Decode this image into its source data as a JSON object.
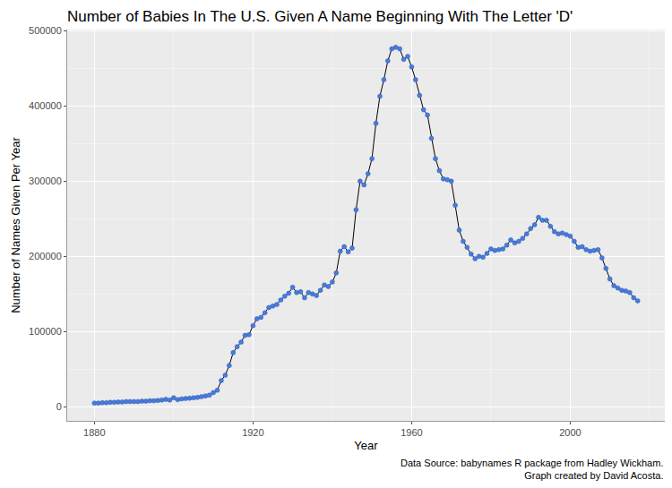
{
  "chart_data": {
    "type": "line",
    "title": "Number of Babies In The U.S. Given A Name Beginning With The Letter 'D'",
    "x_label": "Year",
    "y_label": "Number of Names Given Per Year",
    "caption": [
      "Data Source: babynames R package from Hadley Wickham.",
      "Graph created by David Acosta."
    ],
    "x": [
      1880,
      1881,
      1882,
      1883,
      1884,
      1885,
      1886,
      1887,
      1888,
      1889,
      1890,
      1891,
      1892,
      1893,
      1894,
      1895,
      1896,
      1897,
      1898,
      1899,
      1900,
      1901,
      1902,
      1903,
      1904,
      1905,
      1906,
      1907,
      1908,
      1909,
      1910,
      1911,
      1912,
      1913,
      1914,
      1915,
      1916,
      1917,
      1918,
      1919,
      1920,
      1921,
      1922,
      1923,
      1924,
      1925,
      1926,
      1927,
      1928,
      1929,
      1930,
      1931,
      1932,
      1933,
      1934,
      1935,
      1936,
      1937,
      1938,
      1939,
      1940,
      1941,
      1942,
      1943,
      1944,
      1945,
      1946,
      1947,
      1948,
      1949,
      1950,
      1951,
      1952,
      1953,
      1954,
      1955,
      1956,
      1957,
      1958,
      1959,
      1960,
      1961,
      1962,
      1963,
      1964,
      1965,
      1966,
      1967,
      1968,
      1969,
      1970,
      1971,
      1972,
      1973,
      1974,
      1975,
      1976,
      1977,
      1978,
      1979,
      1980,
      1981,
      1982,
      1983,
      1984,
      1985,
      1986,
      1987,
      1988,
      1989,
      1990,
      1991,
      1992,
      1993,
      1994,
      1995,
      1996,
      1997,
      1998,
      1999,
      2000,
      2001,
      2002,
      2003,
      2004,
      2005,
      2006,
      2007,
      2008,
      2009,
      2010,
      2011,
      2012,
      2013,
      2014,
      2015,
      2016,
      2017
    ],
    "values": [
      5000,
      5000,
      5500,
      5500,
      6000,
      6000,
      6500,
      6500,
      7000,
      7000,
      7000,
      7000,
      7500,
      7500,
      8000,
      8000,
      8500,
      9000,
      10000,
      9000,
      12000,
      9500,
      10500,
      11000,
      11500,
      12000,
      12500,
      13500,
      14500,
      15500,
      19000,
      22000,
      35000,
      42000,
      55000,
      72000,
      80000,
      86000,
      95000,
      96000,
      108000,
      117000,
      119000,
      125000,
      132000,
      134000,
      136000,
      142000,
      147000,
      151000,
      159000,
      152000,
      153000,
      145000,
      152000,
      150000,
      148000,
      155000,
      162000,
      160000,
      166000,
      178000,
      207000,
      213000,
      206000,
      211000,
      262000,
      300000,
      295000,
      310000,
      330000,
      377000,
      413000,
      435000,
      460000,
      476000,
      478000,
      476000,
      462000,
      466000,
      452000,
      435000,
      414000,
      395000,
      388000,
      357000,
      330000,
      314000,
      303000,
      302000,
      300000,
      268000,
      235000,
      220000,
      212000,
      203000,
      197000,
      200000,
      199000,
      204000,
      210000,
      208000,
      209000,
      210000,
      215000,
      222000,
      218000,
      220000,
      224000,
      230000,
      237000,
      242000,
      252000,
      248000,
      248000,
      240000,
      233000,
      230000,
      231000,
      229000,
      227000,
      220000,
      212000,
      213000,
      209000,
      207000,
      208000,
      209000,
      198000,
      184000,
      170000,
      161000,
      158000,
      155000,
      154000,
      152000,
      145000,
      141000
    ],
    "color": "#4a7bd9",
    "marker": "circle",
    "line_style": "solid",
    "xlim": [
      1873.15,
      2023.85
    ],
    "xticks": [
      1880,
      1920,
      1960,
      2000
    ],
    "ylim": [
      -18650,
      501650
    ],
    "yticks": [
      0,
      100000,
      200000,
      300000,
      400000,
      500000
    ],
    "grid": true
  }
}
